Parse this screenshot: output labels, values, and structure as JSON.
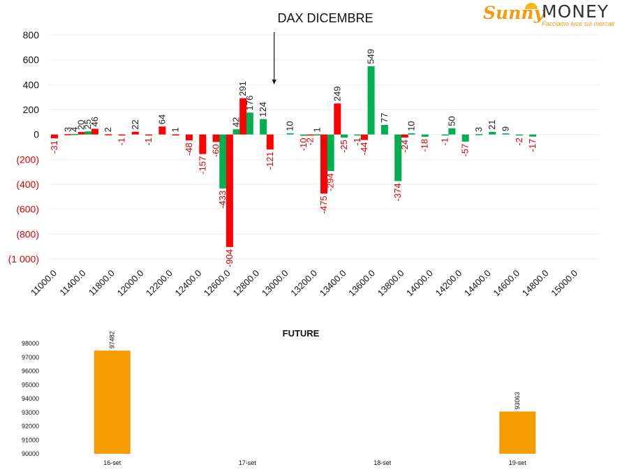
{
  "brand": {
    "name_part1": "Sunny",
    "name_part2": "MONEY",
    "tagline": "Facciamo luce sui mercati",
    "colors": {
      "orange": "#f29b0d",
      "dark": "#333333"
    },
    "icon": "sun-icon"
  },
  "chart_data": [
    {
      "type": "bar",
      "title": "DAX DICEMBRE",
      "colors": {
        "green": "#00b050",
        "red": "#ff0000",
        "negative_tick": "#e00000"
      },
      "ylim": [
        -1000,
        800
      ],
      "y_ticks": [
        {
          "value": 800,
          "label": "800"
        },
        {
          "value": 600,
          "label": "600"
        },
        {
          "value": 400,
          "label": "400"
        },
        {
          "value": 200,
          "label": "200"
        },
        {
          "value": 0,
          "label": "0"
        },
        {
          "value": -200,
          "label": "(200)"
        },
        {
          "value": -400,
          "label": "(400)"
        },
        {
          "value": -600,
          "label": "(600)"
        },
        {
          "value": -800,
          "label": "(800)"
        },
        {
          "value": -1000,
          "label": "(1 000)"
        }
      ],
      "x_ticks": [
        "11000.0",
        "11400.0",
        "11800.0",
        "12000.0",
        "12200.0",
        "12400.0",
        "12600.0",
        "12800.0",
        "13000.0",
        "13200.0",
        "13400.0",
        "13600.0",
        "13800.0",
        "14000.0",
        "14200.0",
        "14400.0",
        "14600.0",
        "14800.0",
        "15000.0"
      ],
      "xlim": [
        11000,
        15000
      ],
      "annotation": {
        "arrow_to_strike": 12900
      },
      "bars": [
        {
          "strike": 11000,
          "series": "red",
          "value": -31
        },
        {
          "strike": 11100,
          "series": "red",
          "value": 3
        },
        {
          "strike": 11150,
          "series": "green",
          "value": 4
        },
        {
          "strike": 11200,
          "series": "red",
          "value": 20
        },
        {
          "strike": 11250,
          "series": "green",
          "value": 25
        },
        {
          "strike": 11300,
          "series": "red",
          "value": 46
        },
        {
          "strike": 11400,
          "series": "red",
          "value": 2
        },
        {
          "strike": 11500,
          "series": "red",
          "value": -1
        },
        {
          "strike": 11600,
          "series": "red",
          "value": 22
        },
        {
          "strike": 11700,
          "series": "red",
          "value": -1
        },
        {
          "strike": 11800,
          "series": "red",
          "value": 64
        },
        {
          "strike": 11900,
          "series": "red",
          "value": 1
        },
        {
          "strike": 12000,
          "series": "red",
          "value": -48
        },
        {
          "strike": 12100,
          "series": "red",
          "value": -157
        },
        {
          "strike": 12200,
          "series": "red",
          "value": -60
        },
        {
          "strike": 12250,
          "series": "green",
          "value": -433
        },
        {
          "strike": 12300,
          "series": "red",
          "value": -904
        },
        {
          "strike": 12350,
          "series": "green",
          "value": 42
        },
        {
          "strike": 12400,
          "series": "red",
          "value": 291
        },
        {
          "strike": 12450,
          "series": "green",
          "value": 176
        },
        {
          "strike": 12550,
          "series": "green",
          "value": 124
        },
        {
          "strike": 12600,
          "series": "red",
          "value": -121
        },
        {
          "strike": 12750,
          "series": "green",
          "value": 10
        },
        {
          "strike": 12850,
          "series": "green",
          "value": -10
        },
        {
          "strike": 12900,
          "series": "red",
          "value": -2
        },
        {
          "strike": 12950,
          "series": "green",
          "value": 1
        },
        {
          "strike": 13000,
          "series": "red",
          "value": -475
        },
        {
          "strike": 13050,
          "series": "green",
          "value": -294
        },
        {
          "strike": 13100,
          "series": "red",
          "value": 249
        },
        {
          "strike": 13150,
          "series": "green",
          "value": -25
        },
        {
          "strike": 13250,
          "series": "green",
          "value": -1
        },
        {
          "strike": 13300,
          "series": "red",
          "value": -44
        },
        {
          "strike": 13350,
          "series": "green",
          "value": 549
        },
        {
          "strike": 13450,
          "series": "green",
          "value": 77
        },
        {
          "strike": 13550,
          "series": "green",
          "value": -374
        },
        {
          "strike": 13600,
          "series": "red",
          "value": -24
        },
        {
          "strike": 13650,
          "series": "green",
          "value": 10
        },
        {
          "strike": 13750,
          "series": "green",
          "value": -18
        },
        {
          "strike": 13900,
          "series": "green",
          "value": -1
        },
        {
          "strike": 13950,
          "series": "green",
          "value": 50
        },
        {
          "strike": 14050,
          "series": "green",
          "value": -57
        },
        {
          "strike": 14150,
          "series": "green",
          "value": 3
        },
        {
          "strike": 14250,
          "series": "green",
          "value": 21
        },
        {
          "strike": 14350,
          "series": "green",
          "value": 9
        },
        {
          "strike": 14450,
          "series": "green",
          "value": -2
        },
        {
          "strike": 14550,
          "series": "green",
          "value": -17
        }
      ]
    },
    {
      "type": "bar",
      "title": "FUTURE",
      "color": "#f59c00",
      "ylim": [
        90000,
        98000
      ],
      "y_ticks": [
        "98000",
        "97000",
        "96000",
        "95000",
        "94000",
        "93000",
        "92000",
        "91000",
        "90000"
      ],
      "categories": [
        "16-set",
        "17-set",
        "18-set",
        "19-set"
      ],
      "values": [
        97482,
        null,
        null,
        93063
      ],
      "value_labels": [
        "97482",
        "",
        "",
        "93063"
      ]
    }
  ]
}
